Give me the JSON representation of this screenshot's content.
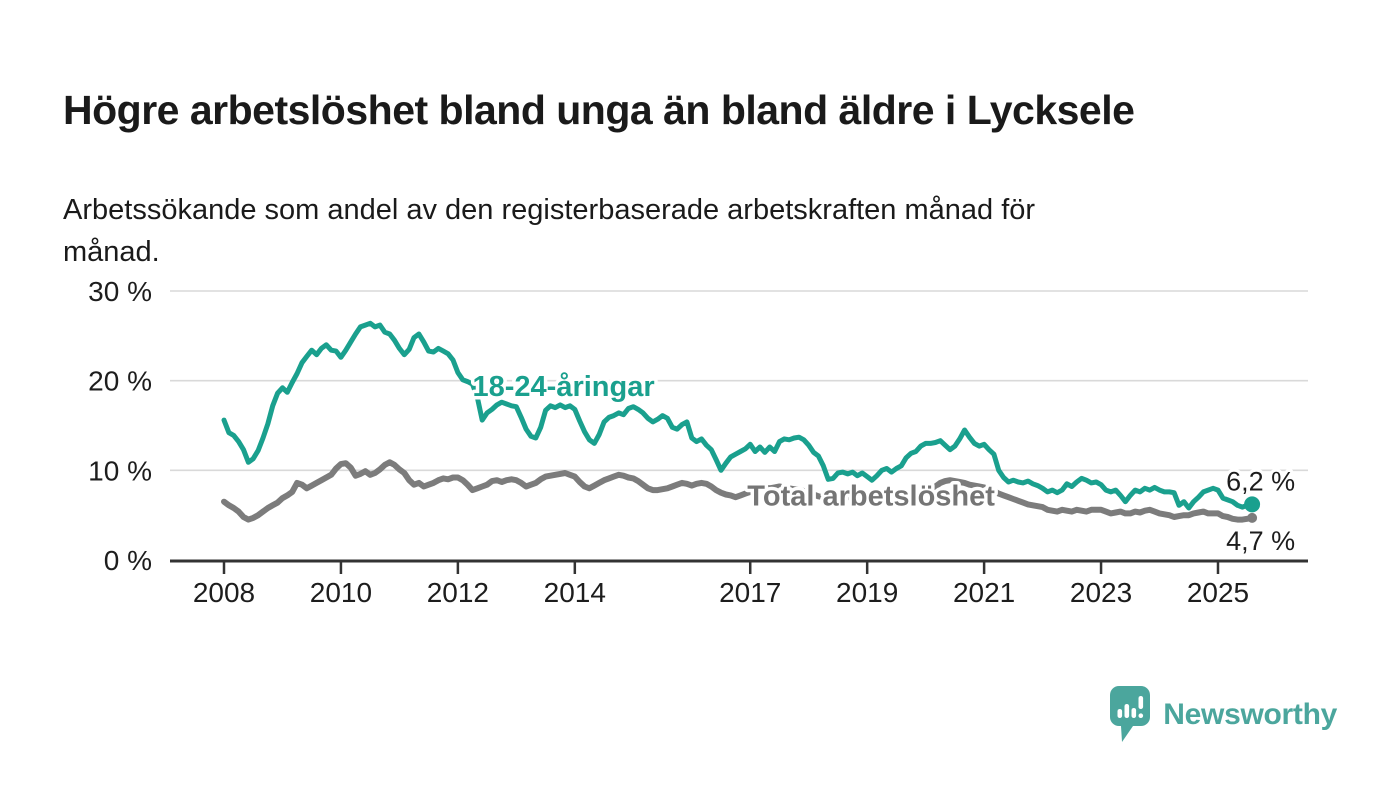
{
  "page": {
    "title": "Högre arbetslöshet bland unga än bland äldre i Lycksele",
    "subtitle_line1": "Arbetssökande som andel av den registerbaserade arbetskraften månad för",
    "subtitle_line2": "månad."
  },
  "branding": {
    "logo_text": "Newsworthy",
    "logo_color": "#4BA69D"
  },
  "colors": {
    "youth_line": "#1AA08E",
    "total_line": "#7C7C7C",
    "total_label": "#757575",
    "gridline": "#D9D9D9",
    "axis": "#333333",
    "text": "#1D1D1D",
    "background": "#FFFFFF"
  },
  "chart_data": {
    "type": "line",
    "title": "Högre arbetslöshet bland unga än bland äldre i Lycksele",
    "subtitle": "Arbetssökande som andel av den registerbaserade arbetskraften månad för månad.",
    "frequency": "monthly",
    "x_start_year": 2008,
    "x_end": "2025-08",
    "grid": "horizontal",
    "legend_position": "inline-labels",
    "x_axis": {
      "ticks": [
        2008,
        2010,
        2012,
        2014,
        2017,
        2019,
        2021,
        2023,
        2025
      ]
    },
    "y_axis": {
      "range": [
        0,
        30
      ],
      "unit": "%",
      "ticks": [
        {
          "pct": 0,
          "label": "0 %"
        },
        {
          "pct": 10,
          "label": "10 %"
        },
        {
          "pct": 20,
          "label": "20 %"
        },
        {
          "pct": 30,
          "label": "30 %"
        }
      ]
    },
    "series": [
      {
        "name": "Total arbetslöshet",
        "color": "#7C7C7C",
        "stroke_width": 6,
        "label_color": "#757575",
        "label_anchor": {
          "year": 2016.95,
          "pct": 6.1
        },
        "end_dot_radius": 5,
        "values": [
          6.5,
          6.1,
          5.8,
          5.4,
          4.8,
          4.5,
          4.7,
          5.0,
          5.4,
          5.8,
          6.1,
          6.4,
          6.9,
          7.2,
          7.6,
          8.6,
          8.4,
          8.0,
          8.3,
          8.6,
          8.9,
          9.2,
          9.5,
          10.2,
          10.7,
          10.8,
          10.3,
          9.4,
          9.6,
          9.9,
          9.5,
          9.7,
          10.1,
          10.6,
          10.9,
          10.6,
          10.1,
          9.7,
          8.9,
          8.4,
          8.6,
          8.2,
          8.4,
          8.6,
          8.9,
          9.1,
          9.0,
          9.2,
          9.2,
          8.9,
          8.4,
          7.8,
          8.0,
          8.2,
          8.4,
          8.8,
          8.9,
          8.7,
          8.9,
          9.0,
          8.9,
          8.6,
          8.2,
          8.4,
          8.6,
          9.0,
          9.3,
          9.4,
          9.5,
          9.6,
          9.7,
          9.5,
          9.3,
          8.7,
          8.2,
          8.0,
          8.3,
          8.6,
          8.9,
          9.1,
          9.3,
          9.5,
          9.4,
          9.2,
          9.1,
          8.8,
          8.4,
          8.0,
          7.8,
          7.8,
          7.9,
          8.0,
          8.2,
          8.4,
          8.6,
          8.5,
          8.3,
          8.5,
          8.6,
          8.5,
          8.2,
          7.8,
          7.5,
          7.3,
          7.2,
          7.0,
          7.2,
          7.4,
          7.6,
          7.8,
          8.0,
          8.1,
          8.0,
          8.1,
          8.2,
          8.1,
          8.0,
          7.9,
          7.8,
          7.7,
          7.5,
          7.3,
          7.1,
          7.0,
          6.9,
          6.8,
          6.9,
          7.0,
          7.0,
          7.1,
          7.0,
          7.1,
          7.1,
          7.0,
          7.0,
          7.1,
          7.2,
          7.2,
          7.3,
          7.4,
          7.5,
          7.6,
          7.7,
          7.8,
          7.9,
          8.0,
          8.2,
          8.6,
          8.8,
          8.9,
          8.8,
          8.7,
          8.6,
          8.4,
          8.3,
          8.2,
          8.1,
          7.9,
          7.7,
          7.4,
          7.2,
          7.0,
          6.8,
          6.6,
          6.4,
          6.2,
          6.1,
          6.0,
          5.9,
          5.6,
          5.5,
          5.4,
          5.6,
          5.5,
          5.4,
          5.6,
          5.5,
          5.4,
          5.6,
          5.6,
          5.6,
          5.4,
          5.2,
          5.3,
          5.4,
          5.2,
          5.2,
          5.4,
          5.3,
          5.5,
          5.6,
          5.4,
          5.2,
          5.1,
          5.0,
          4.8,
          4.9,
          5.0,
          5.0,
          5.2,
          5.3,
          5.4,
          5.2,
          5.2,
          5.2,
          4.9,
          4.8,
          4.6,
          4.5,
          4.5,
          4.6,
          4.7
        ]
      },
      {
        "name": "18-24-åringar",
        "color": "#1AA08E",
        "stroke_width": 5,
        "label_color": "#1AA08E",
        "label_anchor": {
          "year": 2012.25,
          "pct": 18.3
        },
        "end_dot_radius": 8,
        "values": [
          15.6,
          14.2,
          13.9,
          13.2,
          12.3,
          10.9,
          11.3,
          12.2,
          13.6,
          15.2,
          17.2,
          18.6,
          19.2,
          18.7,
          19.8,
          20.8,
          22.0,
          22.7,
          23.4,
          22.9,
          23.6,
          24.0,
          23.4,
          23.3,
          22.6,
          23.4,
          24.3,
          25.2,
          26.0,
          26.2,
          26.4,
          26.0,
          26.2,
          25.4,
          25.2,
          24.5,
          23.6,
          22.9,
          23.5,
          24.8,
          25.2,
          24.3,
          23.3,
          23.2,
          23.6,
          23.3,
          23.0,
          22.3,
          20.9,
          20.1,
          19.9,
          19.6,
          18.1,
          15.6,
          16.4,
          16.8,
          17.3,
          17.6,
          17.4,
          17.2,
          17.1,
          15.9,
          14.6,
          13.8,
          13.6,
          14.8,
          16.7,
          17.2,
          17.0,
          17.3,
          17.0,
          17.2,
          16.8,
          15.5,
          14.3,
          13.4,
          13.0,
          14.0,
          15.4,
          15.9,
          16.1,
          16.4,
          16.2,
          16.9,
          17.1,
          16.8,
          16.4,
          15.8,
          15.4,
          15.7,
          16.1,
          15.8,
          14.8,
          14.6,
          15.1,
          15.4,
          13.6,
          13.2,
          13.5,
          12.8,
          12.3,
          11.2,
          10.0,
          10.8,
          11.5,
          11.8,
          12.1,
          12.4,
          12.9,
          12.1,
          12.6,
          12.0,
          12.6,
          12.1,
          13.2,
          13.5,
          13.4,
          13.6,
          13.7,
          13.4,
          12.8,
          12.0,
          11.6,
          10.5,
          9.0,
          9.1,
          9.7,
          9.8,
          9.6,
          9.8,
          9.4,
          9.7,
          9.3,
          8.9,
          9.4,
          10.0,
          10.2,
          9.8,
          10.2,
          10.5,
          11.4,
          11.9,
          12.1,
          12.7,
          13.0,
          13.0,
          13.1,
          13.3,
          12.8,
          12.3,
          12.7,
          13.5,
          14.5,
          13.7,
          13.0,
          12.7,
          12.9,
          12.3,
          11.8,
          10.0,
          9.2,
          8.7,
          8.9,
          8.7,
          8.6,
          8.8,
          8.5,
          8.3,
          8.0,
          7.6,
          7.8,
          7.5,
          7.8,
          8.5,
          8.2,
          8.7,
          9.1,
          8.9,
          8.6,
          8.7,
          8.4,
          7.8,
          7.6,
          7.8,
          7.2,
          6.5,
          7.2,
          7.8,
          7.6,
          8.0,
          7.8,
          8.1,
          7.8,
          7.6,
          7.6,
          7.5,
          6.1,
          6.5,
          5.8,
          6.5,
          7.0,
          7.6,
          7.8,
          8.0,
          7.8,
          6.9,
          6.7,
          6.5,
          6.1,
          5.9,
          6.1,
          6.2
        ]
      }
    ],
    "end_labels": [
      {
        "series": 1,
        "text": "6,2 %"
      },
      {
        "series": 0,
        "text": "4,7 %"
      }
    ]
  }
}
